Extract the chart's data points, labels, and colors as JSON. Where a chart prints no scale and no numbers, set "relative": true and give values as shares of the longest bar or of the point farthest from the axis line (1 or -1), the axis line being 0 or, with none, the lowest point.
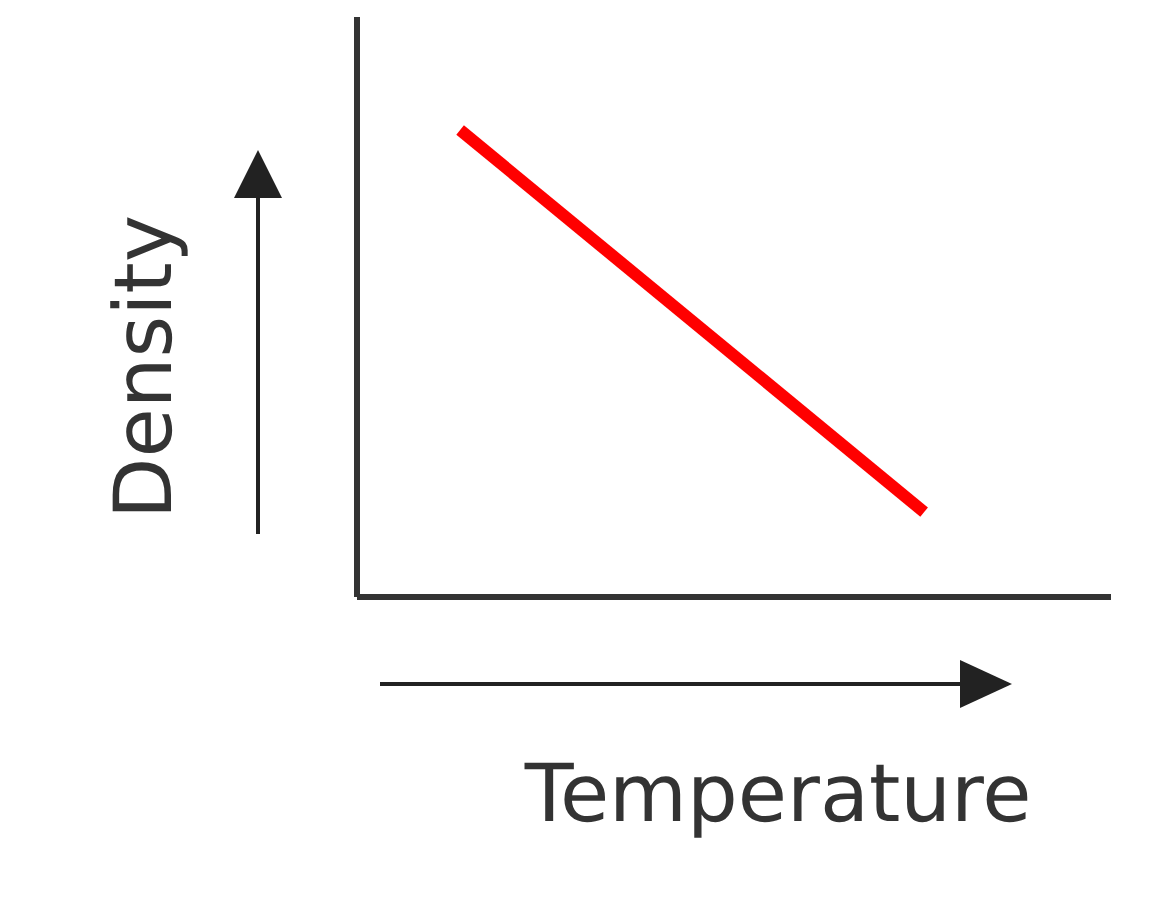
{
  "chart_data": {
    "type": "line",
    "relative": true,
    "xlabel": "Temperature",
    "ylabel": "Density",
    "categories": [
      null,
      null
    ],
    "series": [
      {
        "color": "#ff0000",
        "values": [
          1,
          0.18
        ]
      }
    ],
    "tick_labels": false,
    "grid": false,
    "marker": "none",
    "line_style": "solid"
  }
}
